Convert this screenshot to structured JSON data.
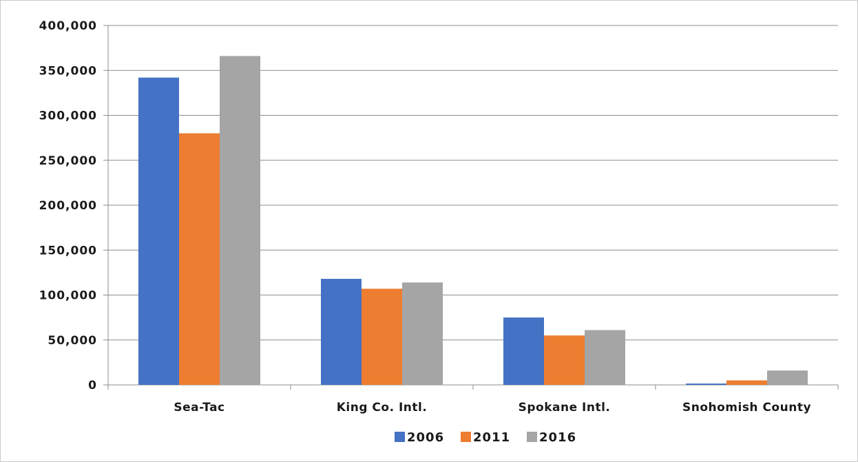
{
  "chart_data": {
    "type": "bar",
    "title": "",
    "xlabel": "",
    "ylabel": "",
    "categories": [
      "Sea-Tac",
      "King Co. Intl.",
      "Spokane Intl.",
      "Snohomish County"
    ],
    "series": [
      {
        "name": "2006",
        "color": "#4472c4",
        "values": [
          342000,
          118000,
          75000,
          1500
        ]
      },
      {
        "name": "2011",
        "color": "#ed7d31",
        "values": [
          280000,
          107000,
          55000,
          5000
        ]
      },
      {
        "name": "2016",
        "color": "#a5a5a5",
        "values": [
          366000,
          114000,
          61000,
          16000
        ]
      }
    ],
    "ylim": [
      0,
      400000
    ],
    "yticks": [
      0,
      50000,
      100000,
      150000,
      200000,
      250000,
      300000,
      350000,
      400000
    ],
    "ytick_labels": [
      "0",
      "50,000",
      "100,000",
      "150,000",
      "200,000",
      "250,000",
      "300,000",
      "350,000",
      "400,000"
    ],
    "grid": true,
    "legend_position": "bottom"
  }
}
